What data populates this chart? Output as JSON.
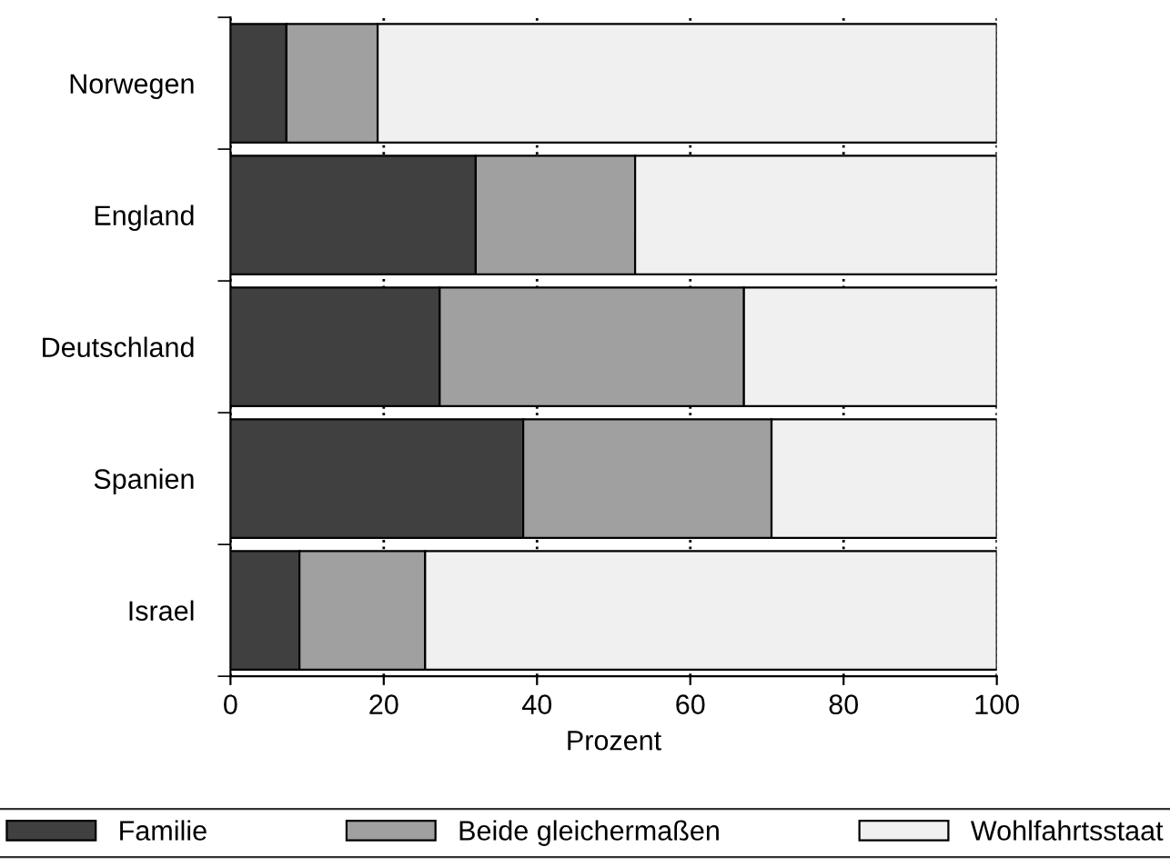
{
  "chart_data": {
    "type": "bar",
    "orientation": "horizontal",
    "stacked": true,
    "xlabel": "Prozent",
    "categories": [
      "Norwegen",
      "England",
      "Deutschland",
      "Spanien",
      "Israel"
    ],
    "series": [
      {
        "name": "Familie",
        "color": "#404040",
        "values": [
          7.3,
          32,
          27.3,
          38.2,
          9
        ]
      },
      {
        "name": "Beide gleichermaßen",
        "color": "#a0a0a0",
        "values": [
          11.9,
          20.8,
          39.7,
          32.4,
          16.4
        ]
      },
      {
        "name": "Wohlfahrtsstaat",
        "color": "#f0f0f0",
        "values": [
          80.8,
          47.2,
          33,
          29.4,
          74.6
        ]
      }
    ],
    "xlim": [
      0,
      100
    ],
    "xticks": [
      0,
      20,
      40,
      60,
      80,
      100
    ],
    "grid": "x",
    "line_style": "dotted",
    "legend": "bottom"
  }
}
